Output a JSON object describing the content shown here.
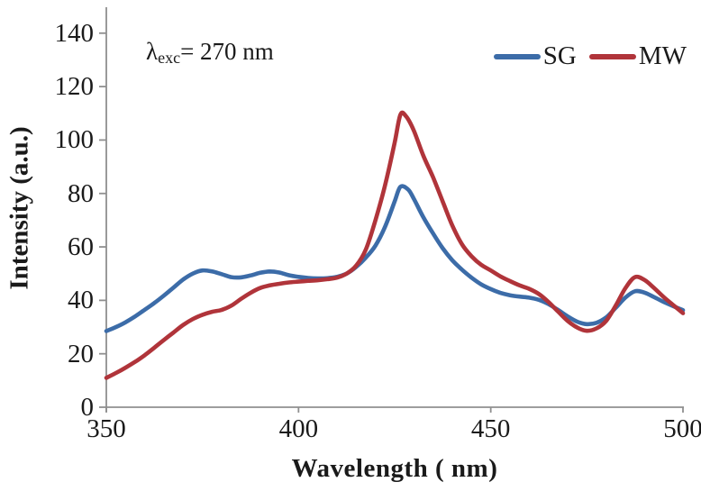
{
  "chart_data": {
    "type": "line",
    "title": "",
    "xlabel": "Wavelength ( nm)",
    "ylabel": "Intensity (a.u.)",
    "xlim": [
      350,
      500
    ],
    "ylim": [
      0,
      140
    ],
    "x_ticks": [
      "350",
      "400",
      "450",
      "500"
    ],
    "x_tick_values": [
      350,
      400,
      450,
      500
    ],
    "y_ticks": [
      "0",
      "20",
      "40",
      "60",
      "80",
      "100",
      "120",
      "140"
    ],
    "y_tick_values": [
      0,
      20,
      40,
      60,
      80,
      100,
      120,
      140
    ],
    "grid": false,
    "legend_position": "top-right",
    "axis_color": "#8f8f8f",
    "text_color": "#1a1a1a",
    "annotation": {
      "lambda": "λ",
      "subscript": "exc",
      "rest": "= 270 nm"
    },
    "series": [
      {
        "name": "SG",
        "color": "#3c6ca8",
        "points": [
          [
            350,
            28.5
          ],
          [
            352.5,
            30
          ],
          [
            355,
            31.8
          ],
          [
            357.5,
            34
          ],
          [
            360,
            36.5
          ],
          [
            362.5,
            39
          ],
          [
            365,
            41.8
          ],
          [
            367.5,
            44.8
          ],
          [
            370,
            47.8
          ],
          [
            372.5,
            50
          ],
          [
            375,
            51.2
          ],
          [
            377.5,
            50.8
          ],
          [
            380,
            49.8
          ],
          [
            382.5,
            48.7
          ],
          [
            385,
            48.6
          ],
          [
            387.5,
            49.3
          ],
          [
            390,
            50.3
          ],
          [
            392.5,
            50.8
          ],
          [
            395,
            50.4
          ],
          [
            397.5,
            49.4
          ],
          [
            400,
            48.8
          ],
          [
            402.5,
            48.4
          ],
          [
            405,
            48.2
          ],
          [
            407.5,
            48.3
          ],
          [
            410,
            48.8
          ],
          [
            412.5,
            50
          ],
          [
            415,
            52.5
          ],
          [
            417.5,
            56
          ],
          [
            420,
            60.5
          ],
          [
            422.5,
            67.5
          ],
          [
            425,
            77
          ],
          [
            426.5,
            82.5
          ],
          [
            428.5,
            81.5
          ],
          [
            430,
            78
          ],
          [
            432.5,
            71
          ],
          [
            435,
            65
          ],
          [
            437.5,
            59.5
          ],
          [
            440,
            55
          ],
          [
            442.5,
            51.5
          ],
          [
            445,
            48.5
          ],
          [
            447.5,
            46
          ],
          [
            450,
            44.2
          ],
          [
            452.5,
            42.8
          ],
          [
            455,
            41.9
          ],
          [
            457.5,
            41.4
          ],
          [
            460,
            41
          ],
          [
            462.5,
            40.2
          ],
          [
            465,
            38.6
          ],
          [
            467.5,
            36.4
          ],
          [
            470,
            34
          ],
          [
            472.5,
            32
          ],
          [
            475,
            31.1
          ],
          [
            477.5,
            31.6
          ],
          [
            480,
            33.6
          ],
          [
            482.5,
            37.2
          ],
          [
            485,
            41
          ],
          [
            487.5,
            43.4
          ],
          [
            490,
            42.9
          ],
          [
            492.5,
            41.2
          ],
          [
            495,
            39.4
          ],
          [
            497.5,
            37.8
          ],
          [
            500,
            36.3
          ]
        ]
      },
      {
        "name": "MW",
        "color": "#b0343a",
        "points": [
          [
            350,
            11
          ],
          [
            352.5,
            12.8
          ],
          [
            355,
            14.8
          ],
          [
            357.5,
            17
          ],
          [
            360,
            19.5
          ],
          [
            362.5,
            22.3
          ],
          [
            365,
            25.2
          ],
          [
            367.5,
            28
          ],
          [
            370,
            30.8
          ],
          [
            372.5,
            33
          ],
          [
            375,
            34.6
          ],
          [
            377.5,
            35.7
          ],
          [
            380,
            36.4
          ],
          [
            382.5,
            38
          ],
          [
            385,
            40.5
          ],
          [
            387.5,
            42.8
          ],
          [
            390,
            44.6
          ],
          [
            392.5,
            45.6
          ],
          [
            395,
            46.2
          ],
          [
            397.5,
            46.7
          ],
          [
            400,
            47
          ],
          [
            402.5,
            47.3
          ],
          [
            405,
            47.5
          ],
          [
            407.5,
            47.9
          ],
          [
            410,
            48.5
          ],
          [
            412.5,
            50
          ],
          [
            415,
            53
          ],
          [
            417.5,
            59
          ],
          [
            420,
            70
          ],
          [
            422.5,
            83
          ],
          [
            425,
            99
          ],
          [
            426.5,
            109.5
          ],
          [
            428,
            108.8
          ],
          [
            430,
            103.5
          ],
          [
            432.5,
            94
          ],
          [
            435,
            86
          ],
          [
            437.5,
            77
          ],
          [
            440,
            68
          ],
          [
            442.5,
            61
          ],
          [
            445,
            56.5
          ],
          [
            447.5,
            53.3
          ],
          [
            450,
            51.2
          ],
          [
            452.5,
            49
          ],
          [
            455,
            47.2
          ],
          [
            457.5,
            45.6
          ],
          [
            460,
            44.3
          ],
          [
            462.5,
            42.4
          ],
          [
            465,
            39.4
          ],
          [
            467.5,
            35.8
          ],
          [
            470,
            32.3
          ],
          [
            472.5,
            29.8
          ],
          [
            475,
            28.6
          ],
          [
            477.5,
            29.5
          ],
          [
            480,
            32.3
          ],
          [
            482.5,
            38
          ],
          [
            485,
            44.5
          ],
          [
            487.5,
            48.7
          ],
          [
            490,
            47.6
          ],
          [
            492.5,
            44.6
          ],
          [
            495,
            41.2
          ],
          [
            497.5,
            38.2
          ],
          [
            500,
            35.2
          ]
        ]
      }
    ]
  }
}
